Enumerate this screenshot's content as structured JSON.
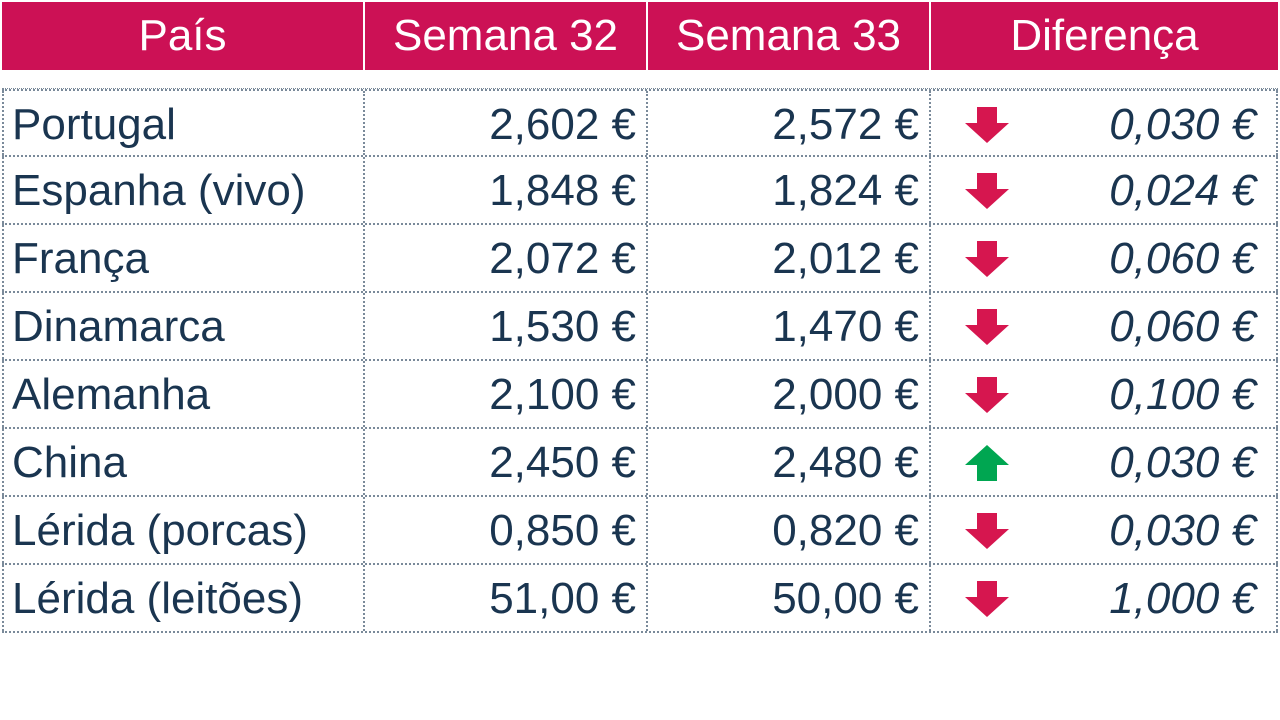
{
  "header": {
    "col_country": "País",
    "col_week32": "Semana 32",
    "col_week33": "Semana 33",
    "col_diff": "Diferença"
  },
  "colors": {
    "header_bg": "#cc1155",
    "text": "#1a3550",
    "down": "#d6164f",
    "up": "#00a651"
  },
  "rows": [
    {
      "country": "Portugal",
      "week32": "2,602 €",
      "week33": "2,572 €",
      "trend": "down",
      "diff": "0,030 €"
    },
    {
      "country": "Espanha (vivo)",
      "week32": "1,848 €",
      "week33": "1,824 €",
      "trend": "down",
      "diff": "0,024 €"
    },
    {
      "country": "França",
      "week32": "2,072 €",
      "week33": "2,012 €",
      "trend": "down",
      "diff": "0,060 €"
    },
    {
      "country": "Dinamarca",
      "week32": "1,530 €",
      "week33": "1,470 €",
      "trend": "down",
      "diff": "0,060 €"
    },
    {
      "country": "Alemanha",
      "week32": "2,100 €",
      "week33": "2,000 €",
      "trend": "down",
      "diff": "0,100 €"
    },
    {
      "country": "China",
      "week32": "2,450 €",
      "week33": "2,480 €",
      "trend": "up",
      "diff": "0,030 €"
    },
    {
      "country": "Lérida (porcas)",
      "week32": "0,850 €",
      "week33": "0,820 €",
      "trend": "down",
      "diff": "0,030 €"
    },
    {
      "country": "Lérida (leitões)",
      "week32": "51,00 €",
      "week33": "50,00 €",
      "trend": "down",
      "diff": "1,000 €"
    }
  ]
}
